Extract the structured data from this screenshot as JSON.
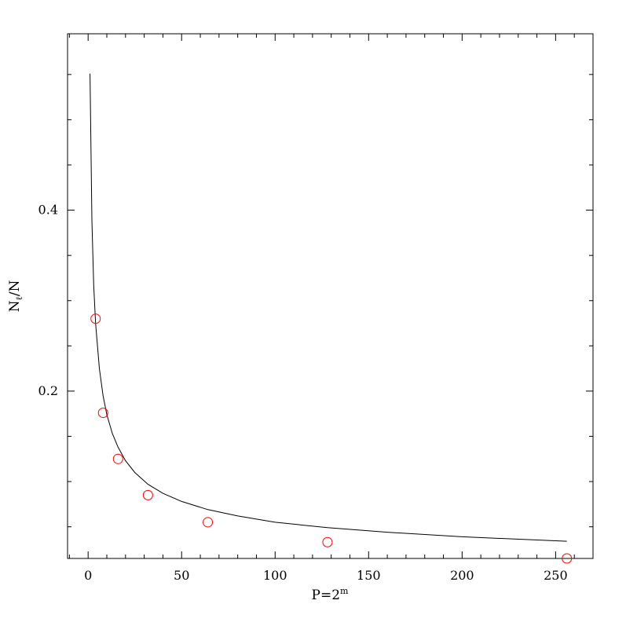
{
  "chart_data": {
    "type": "scatter",
    "title": "",
    "xlabel_main": "P=2",
    "xlabel_sup": "m",
    "ylabel_main": "N",
    "ylabel_sub": "ℓ",
    "ylabel_rest": "/N",
    "xlim": [
      -11,
      270
    ],
    "ylim": [
      0.015,
      0.595
    ],
    "x_ticks": [
      0,
      50,
      100,
      150,
      200,
      250
    ],
    "x_tick_labels": [
      "0",
      "50",
      "100",
      "150",
      "200",
      "250"
    ],
    "y_ticks": [
      0.2,
      0.4
    ],
    "y_tick_labels": [
      "0.2",
      "0.4"
    ],
    "grid": false,
    "legend": "none",
    "series": [
      {
        "kind": "points",
        "marker": "open-circle",
        "color": "#ff0000",
        "x": [
          4,
          8,
          16,
          32,
          64,
          128,
          256
        ],
        "y": [
          0.28,
          0.176,
          0.125,
          0.085,
          0.055,
          0.033,
          0.015
        ]
      },
      {
        "kind": "curve",
        "color": "#000000",
        "x": [
          1,
          2,
          3,
          4,
          6,
          8,
          10,
          13,
          16,
          20,
          25,
          32,
          40,
          50,
          64,
          80,
          100,
          128,
          160,
          200,
          256
        ],
        "y": [
          0.551,
          0.389,
          0.317,
          0.275,
          0.225,
          0.195,
          0.174,
          0.153,
          0.138,
          0.123,
          0.11,
          0.097,
          0.087,
          0.078,
          0.069,
          0.062,
          0.055,
          0.049,
          0.044,
          0.039,
          0.034
        ]
      }
    ]
  }
}
